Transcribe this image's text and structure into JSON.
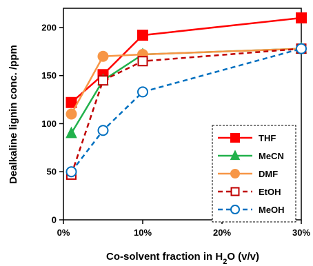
{
  "chart_data": {
    "type": "line",
    "xlabel": "Co-solvent fraction in H₂O (v/v)",
    "xlabel_parts": {
      "pre": "Co-solvent fraction in H",
      "sub": "2",
      "post": "O (v/v)"
    },
    "ylabel": "Dealkaline lignin conc. /ppm",
    "xlim": [
      0,
      30
    ],
    "ylim": [
      0,
      220
    ],
    "x_ticks": [
      0,
      10,
      20,
      30
    ],
    "x_tick_labels": [
      "0%",
      "10%",
      "20%",
      "30%"
    ],
    "y_ticks": [
      0,
      50,
      100,
      150,
      200
    ],
    "y_tick_labels": [
      "0",
      "50",
      "100",
      "150",
      "200"
    ],
    "grid": false,
    "legend_position": "bottom-right",
    "series": [
      {
        "name": "THF",
        "color": "#ff0000",
        "marker": "square-filled",
        "dash": "solid",
        "x": [
          1,
          5,
          10,
          30
        ],
        "y": [
          122,
          151,
          192,
          210
        ]
      },
      {
        "name": "MeCN",
        "color": "#22b14c",
        "marker": "triangle-filled",
        "dash": "solid",
        "x": [
          1,
          5,
          10,
          30
        ],
        "y": [
          90,
          145,
          172,
          178
        ]
      },
      {
        "name": "DMF",
        "color": "#f79646",
        "marker": "circle-filled",
        "dash": "solid",
        "x": [
          1,
          5,
          10,
          30
        ],
        "y": [
          110,
          170,
          172,
          178
        ]
      },
      {
        "name": "EtOH",
        "color": "#c00000",
        "marker": "square-open",
        "dash": "dashed",
        "x": [
          1,
          5,
          10,
          30
        ],
        "y": [
          47,
          145,
          165,
          178
        ]
      },
      {
        "name": "MeOH",
        "color": "#0070c0",
        "marker": "circle-open",
        "dash": "dashed",
        "x": [
          1,
          5,
          10,
          30
        ],
        "y": [
          50,
          93,
          133,
          178
        ]
      }
    ]
  }
}
